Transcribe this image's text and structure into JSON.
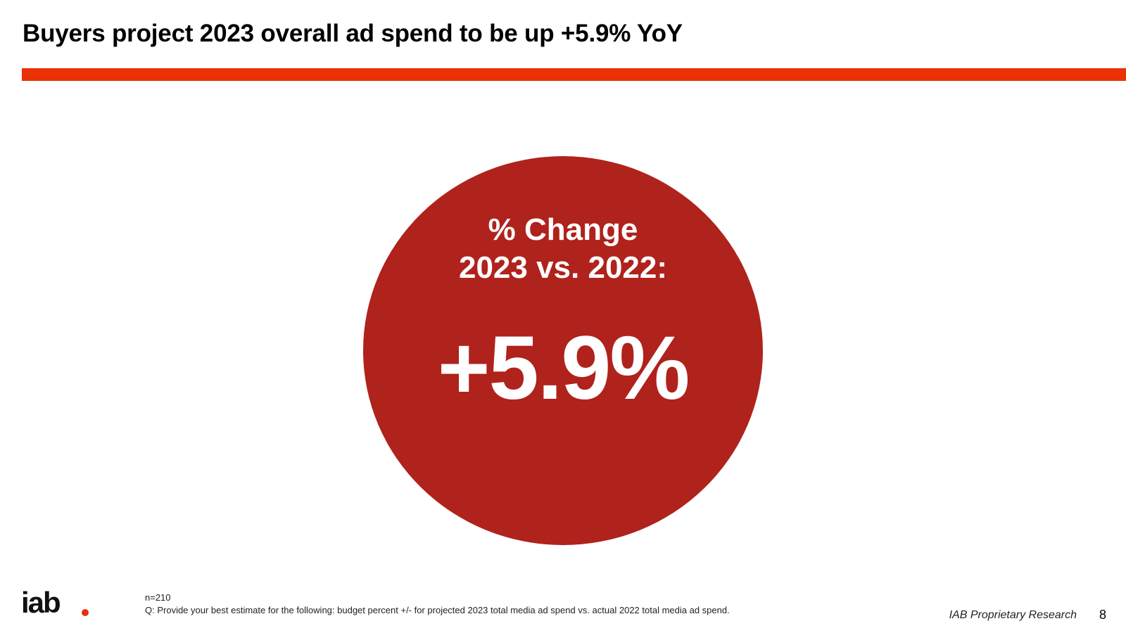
{
  "slide": {
    "title": "Buyers project 2023 overall ad spend to be up +5.9% YoY",
    "accent_color": "#ea3204"
  },
  "stat": {
    "label_line1": "% Change",
    "label_line2": "2023 vs. 2022:",
    "value": "+5.9%",
    "circle_color": "#b0221c"
  },
  "footer": {
    "logo_text": "iab",
    "sample_size": "n=210",
    "question": "Q: Provide your best estimate for the following: budget percent +/- for projected 2023 total media ad spend vs. actual 2022 total media ad spend.",
    "source": "IAB Proprietary Research",
    "page_number": "8"
  }
}
